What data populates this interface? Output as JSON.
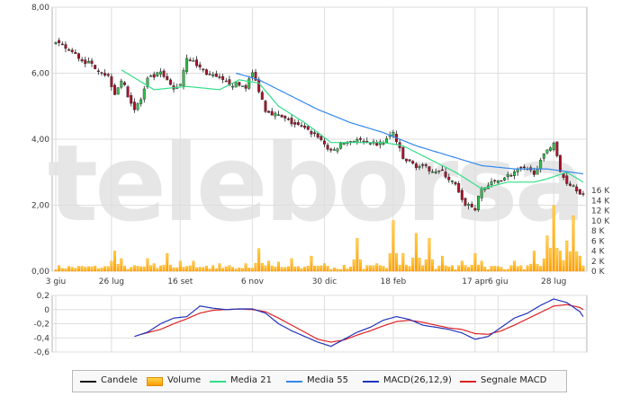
{
  "colors": {
    "candle_up": "#2ec44a",
    "candle_down": "#b0102a",
    "candle_wick": "#222222",
    "volume_top": "#ffd54a",
    "volume_bottom": "#ff9c00",
    "ma21": "#33dd88",
    "ma55": "#3388ee",
    "macd": "#2233bb",
    "signal": "#dd2222",
    "grid": "#dedede",
    "watermark": "#e6e6e6"
  },
  "watermark": "teleborsa",
  "chart_data": [
    {
      "type": "candlestick",
      "name": "price",
      "y_ticks": [
        "8,00",
        "6,00",
        "4,00",
        "2,00",
        "0,00"
      ],
      "y_values": [
        8,
        6,
        4,
        2,
        0
      ],
      "ylim": [
        0,
        8
      ],
      "x_ticks": [
        "3 giu",
        "26 lug",
        "16 set",
        "6 nov",
        "30 dic",
        "18 feb",
        "17 apr",
        "6 giu",
        "28 lug"
      ],
      "x_tick_index": [
        0,
        17,
        38,
        60,
        82,
        103,
        128,
        135,
        152
      ],
      "n_points": 162,
      "anchors_close": [
        [
          0,
          6.9
        ],
        [
          4,
          6.7
        ],
        [
          8,
          6.4
        ],
        [
          12,
          6.2
        ],
        [
          16,
          5.9
        ],
        [
          18,
          5.4
        ],
        [
          20,
          5.8
        ],
        [
          24,
          4.9
        ],
        [
          26,
          5.2
        ],
        [
          28,
          5.8
        ],
        [
          32,
          6.0
        ],
        [
          36,
          5.5
        ],
        [
          38,
          5.7
        ],
        [
          40,
          6.5
        ],
        [
          46,
          6.0
        ],
        [
          52,
          5.7
        ],
        [
          58,
          5.6
        ],
        [
          60,
          6.0
        ],
        [
          62,
          5.5
        ],
        [
          64,
          4.9
        ],
        [
          68,
          4.7
        ],
        [
          72,
          4.5
        ],
        [
          76,
          4.3
        ],
        [
          80,
          4.1
        ],
        [
          84,
          3.6
        ],
        [
          88,
          3.9
        ],
        [
          92,
          4.0
        ],
        [
          96,
          3.8
        ],
        [
          100,
          3.9
        ],
        [
          103,
          4.2
        ],
        [
          106,
          3.4
        ],
        [
          110,
          3.2
        ],
        [
          114,
          3.1
        ],
        [
          118,
          3.0
        ],
        [
          122,
          2.6
        ],
        [
          124,
          2.1
        ],
        [
          128,
          1.9
        ],
        [
          130,
          2.5
        ],
        [
          134,
          2.7
        ],
        [
          138,
          2.9
        ],
        [
          142,
          3.1
        ],
        [
          146,
          3.0
        ],
        [
          148,
          3.3
        ],
        [
          150,
          3.7
        ],
        [
          152,
          3.9
        ],
        [
          154,
          3.0
        ],
        [
          156,
          2.7
        ],
        [
          158,
          2.6
        ],
        [
          161,
          2.3
        ]
      ],
      "ma21_anchors": [
        [
          20,
          6.1
        ],
        [
          30,
          5.5
        ],
        [
          40,
          5.6
        ],
        [
          50,
          5.5
        ],
        [
          56,
          5.8
        ],
        [
          62,
          5.7
        ],
        [
          68,
          5.0
        ],
        [
          76,
          4.5
        ],
        [
          84,
          3.9
        ],
        [
          92,
          3.9
        ],
        [
          100,
          3.9
        ],
        [
          106,
          3.8
        ],
        [
          114,
          3.4
        ],
        [
          122,
          3.0
        ],
        [
          130,
          2.5
        ],
        [
          138,
          2.7
        ],
        [
          146,
          2.7
        ],
        [
          150,
          2.8
        ],
        [
          156,
          3.0
        ],
        [
          161,
          2.7
        ]
      ],
      "ma55_anchors": [
        [
          55,
          6.0
        ],
        [
          62,
          5.8
        ],
        [
          70,
          5.4
        ],
        [
          80,
          4.9
        ],
        [
          90,
          4.5
        ],
        [
          100,
          4.2
        ],
        [
          110,
          3.8
        ],
        [
          120,
          3.5
        ],
        [
          130,
          3.2
        ],
        [
          140,
          3.1
        ],
        [
          150,
          3.1
        ],
        [
          161,
          2.95
        ]
      ]
    },
    {
      "type": "bar",
      "name": "volume",
      "y_ticks": [
        "16 K",
        "14 K",
        "12 K",
        "10 K",
        "8 K",
        "6 K",
        "4 K",
        "2 K",
        "0 K"
      ],
      "y_values": [
        16,
        14,
        12,
        10,
        8,
        6,
        4,
        2,
        0
      ],
      "ylim": [
        0,
        16
      ],
      "peaks": [
        [
          6,
          0.6
        ],
        [
          17,
          2.0
        ],
        [
          18,
          4.0
        ],
        [
          20,
          2.5
        ],
        [
          25,
          1.0
        ],
        [
          28,
          2.5
        ],
        [
          30,
          1.5
        ],
        [
          34,
          3.5
        ],
        [
          38,
          2.0
        ],
        [
          42,
          2.0
        ],
        [
          46,
          1.0
        ],
        [
          50,
          1.5
        ],
        [
          58,
          1.5
        ],
        [
          62,
          4.5
        ],
        [
          65,
          2.0
        ],
        [
          68,
          1.8
        ],
        [
          72,
          2.5
        ],
        [
          78,
          3.0
        ],
        [
          82,
          1.5
        ],
        [
          92,
          6.5
        ],
        [
          98,
          1.5
        ],
        [
          103,
          10.0
        ],
        [
          106,
          3.5
        ],
        [
          110,
          7.5
        ],
        [
          114,
          6.5
        ],
        [
          118,
          3.0
        ],
        [
          124,
          2.0
        ],
        [
          128,
          3.5
        ],
        [
          130,
          2.0
        ],
        [
          134,
          1.0
        ],
        [
          140,
          2.0
        ],
        [
          146,
          4.0
        ],
        [
          150,
          7.0
        ],
        [
          152,
          13.0
        ],
        [
          154,
          4.0
        ],
        [
          156,
          6.0
        ],
        [
          158,
          11.0
        ],
        [
          160,
          3.0
        ]
      ]
    },
    {
      "type": "line",
      "name": "macd",
      "y_ticks": [
        "0,2",
        "0",
        "-0,2",
        "-0,4",
        "-0,6"
      ],
      "y_values": [
        0.2,
        0,
        -0.2,
        -0.4,
        -0.6
      ],
      "ylim": [
        -0.6,
        0.2
      ],
      "macd_anchors": [
        [
          24,
          -0.38
        ],
        [
          28,
          -0.32
        ],
        [
          32,
          -0.2
        ],
        [
          36,
          -0.12
        ],
        [
          40,
          -0.1
        ],
        [
          44,
          0.05
        ],
        [
          48,
          0.02
        ],
        [
          52,
          0.0
        ],
        [
          56,
          0.01
        ],
        [
          60,
          0.01
        ],
        [
          64,
          -0.05
        ],
        [
          68,
          -0.2
        ],
        [
          72,
          -0.3
        ],
        [
          76,
          -0.38
        ],
        [
          80,
          -0.46
        ],
        [
          84,
          -0.52
        ],
        [
          88,
          -0.42
        ],
        [
          92,
          -0.32
        ],
        [
          96,
          -0.25
        ],
        [
          100,
          -0.15
        ],
        [
          104,
          -0.1
        ],
        [
          108,
          -0.14
        ],
        [
          112,
          -0.22
        ],
        [
          116,
          -0.25
        ],
        [
          120,
          -0.28
        ],
        [
          124,
          -0.33
        ],
        [
          128,
          -0.42
        ],
        [
          132,
          -0.38
        ],
        [
          136,
          -0.25
        ],
        [
          140,
          -0.12
        ],
        [
          144,
          -0.05
        ],
        [
          148,
          0.06
        ],
        [
          152,
          0.15
        ],
        [
          156,
          0.1
        ],
        [
          160,
          -0.03
        ],
        [
          161,
          -0.1
        ]
      ],
      "signal_anchors": [
        [
          26,
          -0.35
        ],
        [
          32,
          -0.28
        ],
        [
          36,
          -0.2
        ],
        [
          40,
          -0.13
        ],
        [
          44,
          -0.05
        ],
        [
          48,
          -0.01
        ],
        [
          52,
          0.0
        ],
        [
          56,
          0.01
        ],
        [
          60,
          0.0
        ],
        [
          64,
          -0.03
        ],
        [
          68,
          -0.12
        ],
        [
          72,
          -0.22
        ],
        [
          76,
          -0.32
        ],
        [
          80,
          -0.42
        ],
        [
          84,
          -0.46
        ],
        [
          88,
          -0.43
        ],
        [
          92,
          -0.36
        ],
        [
          96,
          -0.3
        ],
        [
          100,
          -0.23
        ],
        [
          104,
          -0.17
        ],
        [
          108,
          -0.15
        ],
        [
          112,
          -0.18
        ],
        [
          116,
          -0.22
        ],
        [
          120,
          -0.26
        ],
        [
          124,
          -0.28
        ],
        [
          128,
          -0.34
        ],
        [
          132,
          -0.35
        ],
        [
          136,
          -0.3
        ],
        [
          140,
          -0.22
        ],
        [
          144,
          -0.13
        ],
        [
          148,
          -0.04
        ],
        [
          152,
          0.05
        ],
        [
          156,
          0.07
        ],
        [
          160,
          0.03
        ],
        [
          161,
          0.0
        ]
      ]
    }
  ],
  "legend": [
    {
      "label": "Candele",
      "swatch": "line",
      "color": "#111111"
    },
    {
      "label": "Volume",
      "swatch": "volume",
      "color": "#ff9c00"
    },
    {
      "label": "Media 21",
      "swatch": "line",
      "color": "#33dd88"
    },
    {
      "label": "Media 55",
      "swatch": "line",
      "color": "#3388ee"
    },
    {
      "label": "MACD(26,12,9)",
      "swatch": "line",
      "color": "#2233bb"
    },
    {
      "label": "Segnale MACD",
      "swatch": "line",
      "color": "#dd2222"
    }
  ]
}
